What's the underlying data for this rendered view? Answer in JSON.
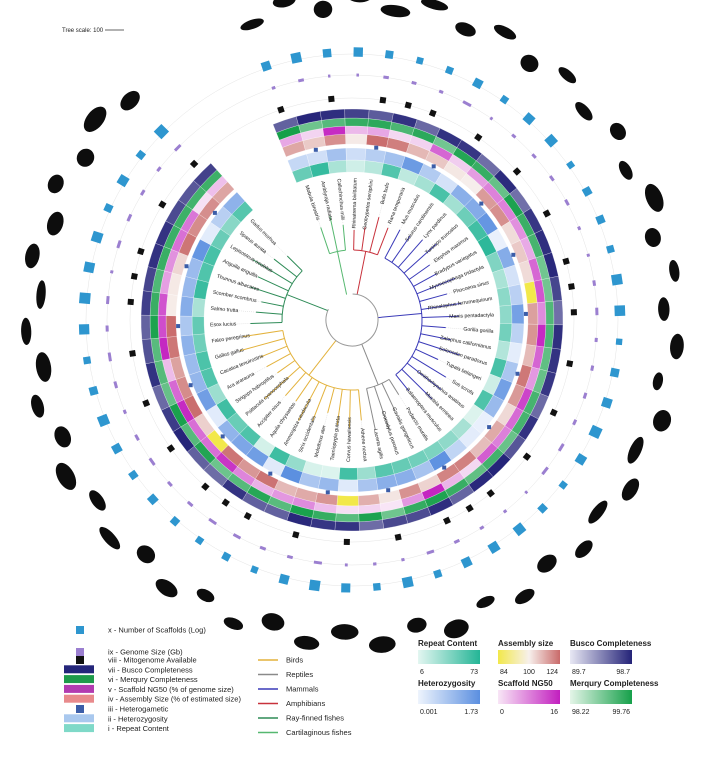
{
  "tree_scale": {
    "label": "Tree scale: 100"
  },
  "track_legend": [
    {
      "numeral": "x",
      "label": "Number of Scaffolds (Log)",
      "color": "#2e96cf",
      "shape": "square"
    },
    {
      "numeral": "ix",
      "label": "Genome Size (Gb)",
      "color": "#9b7fd0",
      "shape": "square"
    },
    {
      "numeral": "viii",
      "label": "Mitogenome Available",
      "color": "#111111",
      "shape": "square"
    },
    {
      "numeral": "vii",
      "label": "Busco Completeness",
      "color": "#24257a",
      "shape": "band"
    },
    {
      "numeral": "vi",
      "label": "Merqury Completeness",
      "color": "#1e9a4a",
      "shape": "band"
    },
    {
      "numeral": "v",
      "label": "Scaffold NG50 (% of genome size)",
      "color": "#b23bb0",
      "shape": "band"
    },
    {
      "numeral": "iv",
      "label": "Assembly Size (% of estimated size)",
      "color": "#e88a8c",
      "shape": "band"
    },
    {
      "numeral": "iii",
      "label": "Heterogametic",
      "color": "#3b5da8",
      "shape": "square"
    },
    {
      "numeral": "ii",
      "label": "Heterozygosity",
      "color": "#a9c8ee",
      "shape": "band"
    },
    {
      "numeral": "i",
      "label": "Repeat Content",
      "color": "#7fd9c8",
      "shape": "band"
    }
  ],
  "clade_legend": [
    {
      "label": "Birds",
      "color": "#e3b23c"
    },
    {
      "label": "Reptiles",
      "color": "#8a8a8a"
    },
    {
      "label": "Mammals",
      "color": "#3a3ab8"
    },
    {
      "label": "Amphibians",
      "color": "#c8323c"
    },
    {
      "label": "Ray-finned fishes",
      "color": "#2e8b57"
    },
    {
      "label": "Cartilaginous fishes",
      "color": "#56b870"
    }
  ],
  "color_scales": [
    {
      "title": "Repeat Content",
      "min": "6",
      "max": "73",
      "colors": [
        "#e3f6f1",
        "#24b596"
      ]
    },
    {
      "title": "Assembly size",
      "min": "84",
      "mid": "100",
      "max": "124",
      "colors": [
        "#f2e84a",
        "#f7f0ec",
        "#c96a6a"
      ]
    },
    {
      "title": "Busco Completeness",
      "min": "89.7",
      "max": "98.7",
      "colors": [
        "#e8e8f4",
        "#242378"
      ]
    },
    {
      "title": "Heterozygosity",
      "min": "0.001",
      "max": "1.73",
      "colors": [
        "#eef4fd",
        "#5b8fe0"
      ]
    },
    {
      "title": "Scaffold NG50",
      "min": "0",
      "max": "16",
      "colors": [
        "#f8e6f6",
        "#c21fbf"
      ]
    },
    {
      "title": "Merqury Completeness",
      "min": "98.22",
      "max": "99.76",
      "colors": [
        "#e4f5e8",
        "#16a04a"
      ]
    }
  ],
  "chart_data": {
    "type": "circular phylogenetic tree with annotation rings",
    "tree_scale": 100,
    "clades": [
      {
        "name": "Birds",
        "species": [
          "Athene noctua",
          "Corvus hawaiiensis",
          "Taeniopygia guttata",
          "Molothrus ater",
          "Strix occidentalis",
          "Ammospiza caudacuta",
          "Aquila chrysaetos",
          "Accipiter nisus",
          "Psittacula cyanocephala",
          "Strigops habroptilus",
          "Ara ararauna",
          "Cacatua tenuirostris",
          "Gallus gallus",
          "Falco peregrinus"
        ]
      },
      {
        "name": "Reptiles",
        "species": [
          "Podarcis muralis",
          "Gavialis gangeticus",
          "Crocodylus porosus",
          "Lacerta agilis"
        ]
      },
      {
        "name": "Mammals",
        "species": [
          "Mus musculus",
          "Sciurus carolinensis",
          "Lynx pardinus",
          "Tursiops truncatus",
          "Elephas maximus",
          "Bradypus variegatus",
          "Myrmecophaga tridactyla",
          "Phocoena sinus",
          "Rhinolophus ferrumequinum",
          "Manis pentadactyla",
          "Gorilla gorilla",
          "Zalophus californianus",
          "Solenodon paradoxus",
          "Tupaia belangeri",
          "Sus scrofa",
          "Ornithorhynchus anatinus",
          "Mustela erminea",
          "Balaenoptera musculus"
        ]
      },
      {
        "name": "Amphibians",
        "species": [
          "Rhinatrema bivittatum",
          "Geotrypetes seraphini",
          "Bufo bufo",
          "Rana temporaria"
        ]
      },
      {
        "name": "Ray-finned fishes",
        "species": [
          "Esox lucius",
          "Salmo trutta",
          "Scomber scombrus",
          "Thunnus albacares",
          "Anguilla anguilla",
          "Lepisosteus oculatus",
          "Sparus aurata",
          "Gadus morhua"
        ]
      },
      {
        "name": "Cartilaginous fishes",
        "species": [
          "Mobula birostris",
          "Amblyraja radiata",
          "Callorhinchus milii"
        ]
      }
    ],
    "rings": [
      "Repeat Content",
      "Heterozygosity",
      "Heterogametic",
      "Assembly Size (% of estimated size)",
      "Scaffold NG50 (% of genome size)",
      "Merqury Completeness",
      "Busco Completeness",
      "Mitogenome Available",
      "Genome Size (Gb)",
      "Number of Scaffolds (Log)"
    ],
    "scales": {
      "Repeat Content": [
        6,
        73
      ],
      "Assembly size": [
        84,
        100,
        124
      ],
      "Busco Completeness": [
        89.7,
        98.7
      ],
      "Heterozygosity": [
        0.001,
        1.73
      ],
      "Scaffold NG50": [
        0,
        16
      ],
      "Merqury Completeness": [
        98.22,
        99.76
      ]
    }
  }
}
